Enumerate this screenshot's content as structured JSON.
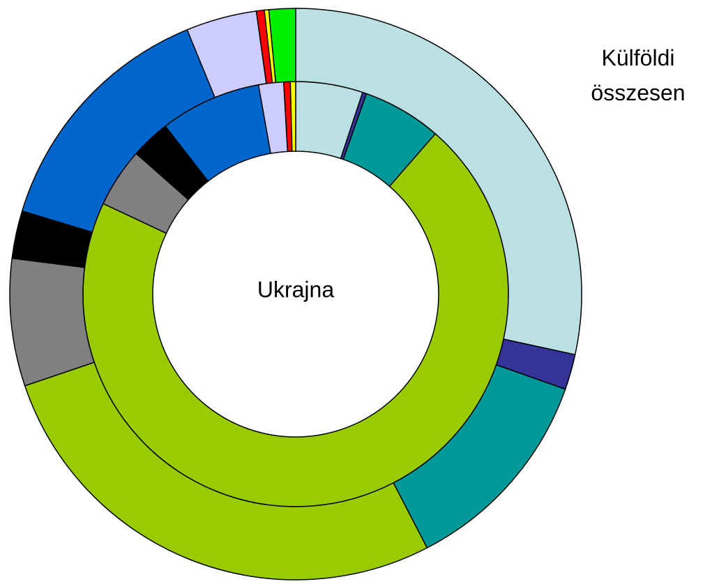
{
  "chart_data": {
    "type": "donut",
    "series": [
      {
        "name": "Ukrajna",
        "values": [
          5.1,
          0.3,
          6.0,
          70.6,
          4.5,
          3.0,
          7.7,
          1.9,
          0.5,
          0.4
        ],
        "colors": [
          "#bbe0e3",
          "#333399",
          "#009999",
          "#99cc00",
          "#808080",
          "#000000",
          "#0066cc",
          "#ccccff",
          "#ff0000",
          "#ffff00"
        ]
      },
      {
        "name": "Külföldi összesen",
        "values": [
          28.4,
          2.0,
          12.0,
          27.4,
          7.2,
          2.7,
          14.1,
          4.0,
          0.45,
          0.25,
          1.5
        ],
        "colors": [
          "#bbe0e3",
          "#333399",
          "#009999",
          "#99cc00",
          "#808080",
          "#000000",
          "#0066cc",
          "#ccccff",
          "#ff0000",
          "#ffff00",
          "#00ee00"
        ]
      }
    ]
  }
}
